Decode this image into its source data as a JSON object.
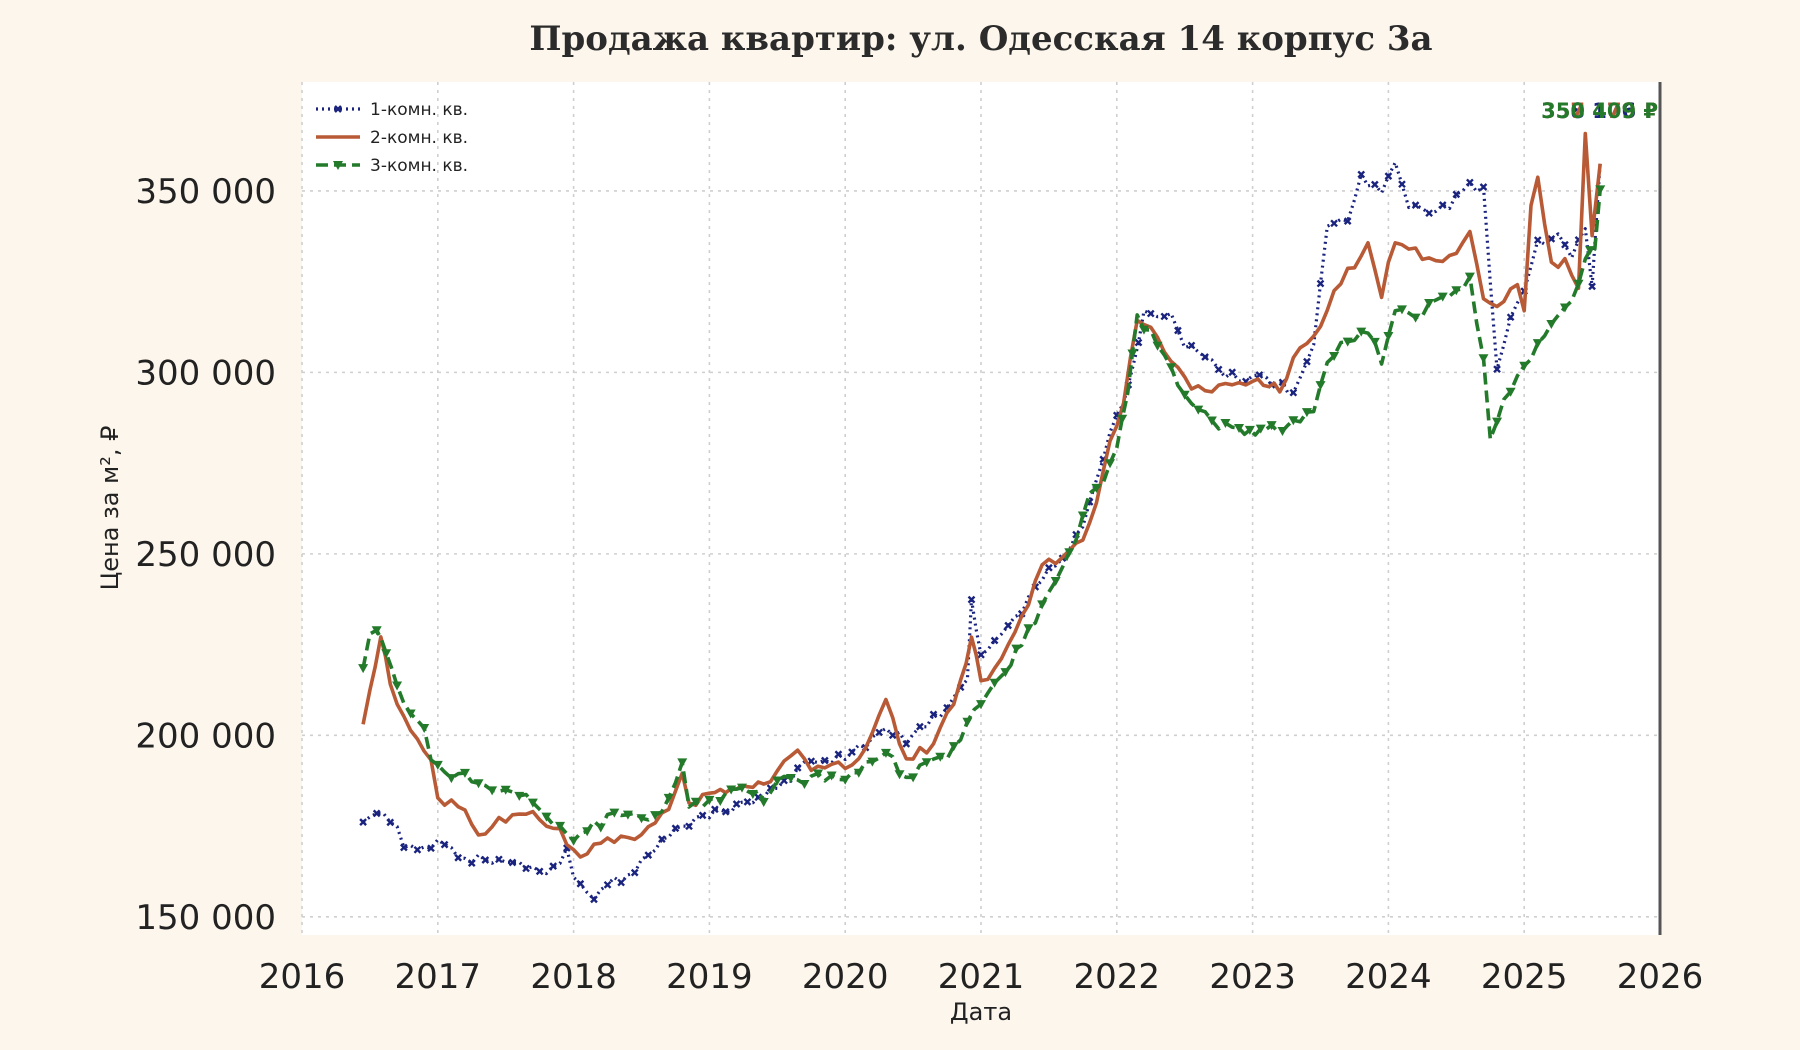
{
  "chart_data": {
    "type": "line",
    "title": "Продажа квартир: ул. Одесская 14 корпус 3а",
    "xlabel": "Дата",
    "ylabel": "Цена за м², ₽",
    "xlim": [
      2016.0,
      2026.0
    ],
    "ylim": [
      145000,
      380000
    ],
    "x_ticks": [
      2016,
      2017,
      2018,
      2019,
      2020,
      2021,
      2022,
      2023,
      2024,
      2025,
      2026
    ],
    "x_tick_labels": [
      "2016",
      "2017",
      "2018",
      "2019",
      "2020",
      "2021",
      "2022",
      "2023",
      "2024",
      "2025",
      "2026"
    ],
    "y_ticks": [
      150000,
      200000,
      250000,
      300000,
      350000
    ],
    "y_tick_labels": [
      "150 000",
      "200 000",
      "250 000",
      "300 000",
      "350 000"
    ],
    "grid": true,
    "legend_position": "top-left",
    "end_labels": [
      "358 176 ₽",
      "357 479 ₽",
      "350 409 ₽"
    ],
    "series": [
      {
        "name": "1-комн. кв.",
        "color": "#1a237e",
        "style": "dotted-marker",
        "points": [
          [
            2016.45,
            177000
          ],
          [
            2016.55,
            178000
          ],
          [
            2016.65,
            177000
          ],
          [
            2016.75,
            170000
          ],
          [
            2016.85,
            168000
          ],
          [
            2016.95,
            170000
          ],
          [
            2017.05,
            170000
          ],
          [
            2017.15,
            167000
          ],
          [
            2017.25,
            166000
          ],
          [
            2017.35,
            166000
          ],
          [
            2017.5,
            165000
          ],
          [
            2017.65,
            164000
          ],
          [
            2017.75,
            163000
          ],
          [
            2017.85,
            163000
          ],
          [
            2017.95,
            168000
          ],
          [
            2018.0,
            160000
          ],
          [
            2018.1,
            157000
          ],
          [
            2018.15,
            156000
          ],
          [
            2018.25,
            159000
          ],
          [
            2018.35,
            160000
          ],
          [
            2018.45,
            161000
          ],
          [
            2018.55,
            168000
          ],
          [
            2018.65,
            171000
          ],
          [
            2018.75,
            174000
          ],
          [
            2018.85,
            176000
          ],
          [
            2019.0,
            178000
          ],
          [
            2019.2,
            180000
          ],
          [
            2019.4,
            184000
          ],
          [
            2019.55,
            187000
          ],
          [
            2019.7,
            192000
          ],
          [
            2019.85,
            193000
          ],
          [
            2020.0,
            194000
          ],
          [
            2020.15,
            198000
          ],
          [
            2020.3,
            201000
          ],
          [
            2020.45,
            199000
          ],
          [
            2020.6,
            203000
          ],
          [
            2020.75,
            208000
          ],
          [
            2020.9,
            215000
          ],
          [
            2020.93,
            238000
          ],
          [
            2021.0,
            222000
          ],
          [
            2021.15,
            228000
          ],
          [
            2021.3,
            234000
          ],
          [
            2021.45,
            243000
          ],
          [
            2021.6,
            249000
          ],
          [
            2021.75,
            258000
          ],
          [
            2021.85,
            270000
          ],
          [
            2021.95,
            283000
          ],
          [
            2022.05,
            292000
          ],
          [
            2022.12,
            303000
          ],
          [
            2022.2,
            316000
          ],
          [
            2022.3,
            314000
          ],
          [
            2022.4,
            316000
          ],
          [
            2022.5,
            308000
          ],
          [
            2022.65,
            305000
          ],
          [
            2022.8,
            300000
          ],
          [
            2022.95,
            298000
          ],
          [
            2023.1,
            298000
          ],
          [
            2023.3,
            295000
          ],
          [
            2023.45,
            308000
          ],
          [
            2023.55,
            340000
          ],
          [
            2023.7,
            343000
          ],
          [
            2023.8,
            354000
          ],
          [
            2023.95,
            350000
          ],
          [
            2024.05,
            358000
          ],
          [
            2024.15,
            346000
          ],
          [
            2024.3,
            344000
          ],
          [
            2024.45,
            346000
          ],
          [
            2024.6,
            352000
          ],
          [
            2024.7,
            350000
          ],
          [
            2024.8,
            302000
          ],
          [
            2024.9,
            314000
          ],
          [
            2025.0,
            322000
          ],
          [
            2025.1,
            336000
          ],
          [
            2025.25,
            337000
          ],
          [
            2025.35,
            332000
          ],
          [
            2025.45,
            340000
          ],
          [
            2025.5,
            325000
          ],
          [
            2025.56,
            358176
          ]
        ]
      },
      {
        "name": "2-комн. кв.",
        "color": "#b85a35",
        "style": "solid",
        "points": [
          [
            2016.45,
            202000
          ],
          [
            2016.5,
            212000
          ],
          [
            2016.58,
            226000
          ],
          [
            2016.65,
            215000
          ],
          [
            2016.75,
            204000
          ],
          [
            2016.85,
            198000
          ],
          [
            2016.95,
            193000
          ],
          [
            2017.0,
            183000
          ],
          [
            2017.1,
            181000
          ],
          [
            2017.2,
            179000
          ],
          [
            2017.3,
            172000
          ],
          [
            2017.4,
            176000
          ],
          [
            2017.5,
            177000
          ],
          [
            2017.6,
            177000
          ],
          [
            2017.7,
            178000
          ],
          [
            2017.8,
            176000
          ],
          [
            2017.9,
            174000
          ],
          [
            2018.0,
            168000
          ],
          [
            2018.1,
            167000
          ],
          [
            2018.2,
            171000
          ],
          [
            2018.35,
            172000
          ],
          [
            2018.5,
            173000
          ],
          [
            2018.6,
            176000
          ],
          [
            2018.7,
            180000
          ],
          [
            2018.8,
            190000
          ],
          [
            2018.85,
            181000
          ],
          [
            2019.0,
            184000
          ],
          [
            2019.2,
            185000
          ],
          [
            2019.4,
            186000
          ],
          [
            2019.55,
            193000
          ],
          [
            2019.65,
            196000
          ],
          [
            2019.75,
            190000
          ],
          [
            2019.9,
            193000
          ],
          [
            2020.0,
            190000
          ],
          [
            2020.15,
            197000
          ],
          [
            2020.3,
            209000
          ],
          [
            2020.45,
            194000
          ],
          [
            2020.6,
            196000
          ],
          [
            2020.75,
            205000
          ],
          [
            2020.85,
            214000
          ],
          [
            2020.93,
            228000
          ],
          [
            2021.0,
            214000
          ],
          [
            2021.15,
            220000
          ],
          [
            2021.3,
            232000
          ],
          [
            2021.45,
            246000
          ],
          [
            2021.6,
            250000
          ],
          [
            2021.75,
            253000
          ],
          [
            2021.85,
            264000
          ],
          [
            2021.95,
            280000
          ],
          [
            2022.05,
            292000
          ],
          [
            2022.15,
            314000
          ],
          [
            2022.25,
            312000
          ],
          [
            2022.4,
            303000
          ],
          [
            2022.55,
            296000
          ],
          [
            2022.7,
            295000
          ],
          [
            2022.85,
            297000
          ],
          [
            2023.0,
            297000
          ],
          [
            2023.2,
            296000
          ],
          [
            2023.35,
            306000
          ],
          [
            2023.5,
            314000
          ],
          [
            2023.6,
            322000
          ],
          [
            2023.75,
            330000
          ],
          [
            2023.85,
            335000
          ],
          [
            2023.95,
            322000
          ],
          [
            2024.05,
            337000
          ],
          [
            2024.2,
            333000
          ],
          [
            2024.35,
            330000
          ],
          [
            2024.5,
            332000
          ],
          [
            2024.6,
            340000
          ],
          [
            2024.7,
            320000
          ],
          [
            2024.8,
            318000
          ],
          [
            2024.95,
            324000
          ],
          [
            2025.0,
            318000
          ],
          [
            2025.05,
            345000
          ],
          [
            2025.1,
            354000
          ],
          [
            2025.2,
            330000
          ],
          [
            2025.3,
            330000
          ],
          [
            2025.4,
            322000
          ],
          [
            2025.45,
            366000
          ],
          [
            2025.5,
            338000
          ],
          [
            2025.56,
            357479
          ]
        ]
      },
      {
        "name": "3-комн. кв.",
        "color": "#237a2a",
        "style": "dashed-marker",
        "points": [
          [
            2016.45,
            218000
          ],
          [
            2016.5,
            228000
          ],
          [
            2016.55,
            230000
          ],
          [
            2016.62,
            222000
          ],
          [
            2016.7,
            214000
          ],
          [
            2016.8,
            205000
          ],
          [
            2016.9,
            202000
          ],
          [
            2016.95,
            193000
          ],
          [
            2017.05,
            190000
          ],
          [
            2017.15,
            189000
          ],
          [
            2017.25,
            188000
          ],
          [
            2017.35,
            186000
          ],
          [
            2017.5,
            186000
          ],
          [
            2017.65,
            183000
          ],
          [
            2017.75,
            180000
          ],
          [
            2017.85,
            176000
          ],
          [
            2017.95,
            174000
          ],
          [
            2018.0,
            172000
          ],
          [
            2018.1,
            174000
          ],
          [
            2018.2,
            176000
          ],
          [
            2018.3,
            178000
          ],
          [
            2018.45,
            178000
          ],
          [
            2018.55,
            177000
          ],
          [
            2018.65,
            178000
          ],
          [
            2018.8,
            192000
          ],
          [
            2018.85,
            180000
          ],
          [
            2019.0,
            182000
          ],
          [
            2019.2,
            185000
          ],
          [
            2019.4,
            183000
          ],
          [
            2019.55,
            188000
          ],
          [
            2019.65,
            187000
          ],
          [
            2019.75,
            189000
          ],
          [
            2019.9,
            188000
          ],
          [
            2020.0,
            188000
          ],
          [
            2020.15,
            192000
          ],
          [
            2020.3,
            196000
          ],
          [
            2020.45,
            188000
          ],
          [
            2020.6,
            192000
          ],
          [
            2020.75,
            194000
          ],
          [
            2020.85,
            200000
          ],
          [
            2020.95,
            206000
          ],
          [
            2021.1,
            214000
          ],
          [
            2021.3,
            225000
          ],
          [
            2021.45,
            235000
          ],
          [
            2021.6,
            245000
          ],
          [
            2021.7,
            255000
          ],
          [
            2021.8,
            268000
          ],
          [
            2021.9,
            270000
          ],
          [
            2022.0,
            280000
          ],
          [
            2022.08,
            295000
          ],
          [
            2022.15,
            315000
          ],
          [
            2022.3,
            308000
          ],
          [
            2022.45,
            296000
          ],
          [
            2022.6,
            290000
          ],
          [
            2022.75,
            285000
          ],
          [
            2022.9,
            284000
          ],
          [
            2023.1,
            284000
          ],
          [
            2023.3,
            286000
          ],
          [
            2023.45,
            290000
          ],
          [
            2023.55,
            303000
          ],
          [
            2023.7,
            309000
          ],
          [
            2023.85,
            312000
          ],
          [
            2023.95,
            303000
          ],
          [
            2024.05,
            318000
          ],
          [
            2024.2,
            314000
          ],
          [
            2024.35,
            320000
          ],
          [
            2024.5,
            323000
          ],
          [
            2024.6,
            325000
          ],
          [
            2024.7,
            303000
          ],
          [
            2024.75,
            282000
          ],
          [
            2024.85,
            292000
          ],
          [
            2024.95,
            300000
          ],
          [
            2025.05,
            305000
          ],
          [
            2025.15,
            310000
          ],
          [
            2025.25,
            317000
          ],
          [
            2025.35,
            320000
          ],
          [
            2025.45,
            330000
          ],
          [
            2025.52,
            335000
          ],
          [
            2025.56,
            350409
          ]
        ]
      }
    ]
  }
}
